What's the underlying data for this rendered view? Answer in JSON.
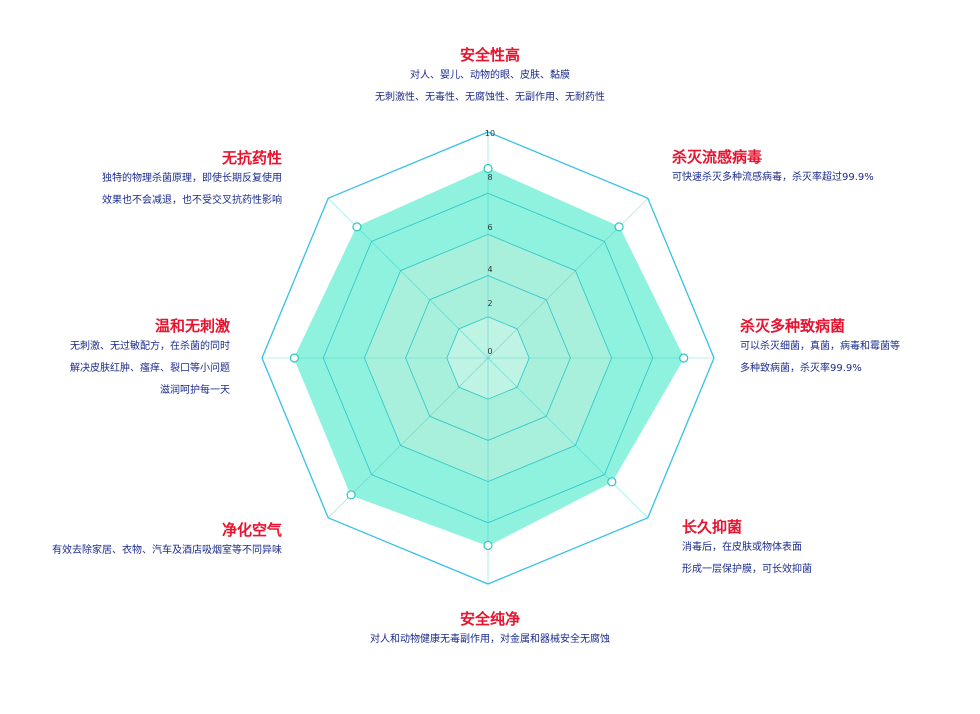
{
  "colors": {
    "title": "#e8132e",
    "desc": "#1b2b8c",
    "outline": "#36c0e8",
    "grid": "#28c6c8",
    "fill_inner": "#d9f7ee",
    "fill_mid": "#a9f0dc",
    "fill_outer": "#8ff2de",
    "marker": "#ffffff"
  },
  "chart_data": {
    "type": "radar",
    "r_ticks": [
      "0",
      "2",
      "4",
      "6",
      "8",
      "10"
    ],
    "r_max": 10,
    "axes": [
      {
        "title": "安全性高",
        "desc": [
          "对人、婴儿、动物的眼、皮肤、黏膜",
          "无刺激性、无毒性、无腐蚀性、无副作用、无耐药性"
        ],
        "value": 9.2
      },
      {
        "title": "杀灭流感病毒",
        "desc": [
          "可快速杀灭多种流感病毒，杀灭率超过99.9%"
        ],
        "value": 9.0
      },
      {
        "title": "杀灭多种致病菌",
        "desc": [
          "可以杀灭细菌，真菌，病毒和霉菌等",
          "多种致病菌，杀灭率99.9%"
        ],
        "value": 9.5
      },
      {
        "title": "长久抑菌",
        "desc": [
          "消毒后，在皮肤或物体表面",
          "形成一层保护膜，可长效抑菌"
        ],
        "value": 8.5
      },
      {
        "title": "安全纯净",
        "desc": [
          "对人和动物健康无毒副作用，对金属和器械安全无腐蚀"
        ],
        "value": 9.1
      },
      {
        "title": "净化空气",
        "desc": [
          "有效去除家居、衣物、汽车及酒店吸烟室等不同异味"
        ],
        "value": 9.4
      },
      {
        "title": "温和无刺激",
        "desc": [
          "无刺激、无过敏配方，在杀菌的同时",
          "解决皮肤红肿、瘙痒、裂口等小问题",
          "滋润呵护每一天"
        ],
        "value": 9.4
      },
      {
        "title": "无抗药性",
        "desc": [
          "独特的物理杀菌原理，即使长期反复使用",
          "效果也不会减退，也不受交叉抗药性影响"
        ],
        "value": 9.0
      }
    ]
  }
}
